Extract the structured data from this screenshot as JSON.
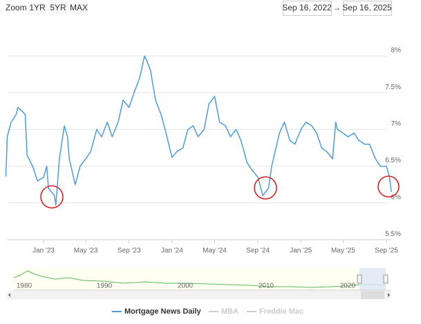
{
  "toolbar": {
    "zoom_label": "Zoom",
    "buttons": [
      "1YR",
      "5YR",
      "MAX"
    ],
    "range_from": "Sep 16, 2022",
    "range_arrow": "→",
    "range_to": "Sep 16, 2025"
  },
  "chart_data": {
    "type": "line",
    "x": [
      "2022-09-16",
      "2022-09-20",
      "2022-10-01",
      "2022-10-15",
      "2022-10-20",
      "2022-11-01",
      "2022-11-10",
      "2022-11-15",
      "2022-12-01",
      "2022-12-15",
      "2023-01-01",
      "2023-01-10",
      "2023-01-15",
      "2023-02-01",
      "2023-02-05",
      "2023-02-15",
      "2023-03-01",
      "2023-03-10",
      "2023-03-15",
      "2023-04-01",
      "2023-04-15",
      "2023-05-01",
      "2023-05-15",
      "2023-06-01",
      "2023-06-15",
      "2023-07-01",
      "2023-07-15",
      "2023-08-01",
      "2023-08-15",
      "2023-09-01",
      "2023-09-15",
      "2023-10-01",
      "2023-10-15",
      "2023-10-20",
      "2023-11-01",
      "2023-11-15",
      "2023-12-01",
      "2023-12-15",
      "2024-01-01",
      "2024-01-15",
      "2024-02-01",
      "2024-02-15",
      "2024-03-01",
      "2024-03-15",
      "2024-04-01",
      "2024-04-15",
      "2024-05-01",
      "2024-05-15",
      "2024-06-01",
      "2024-06-15",
      "2024-07-01",
      "2024-07-15",
      "2024-08-01",
      "2024-08-15",
      "2024-09-01",
      "2024-09-15",
      "2024-10-01",
      "2024-10-10",
      "2024-10-15",
      "2024-11-01",
      "2024-11-15",
      "2024-12-01",
      "2024-12-15",
      "2025-01-01",
      "2025-01-15",
      "2025-02-01",
      "2025-02-15",
      "2025-03-01",
      "2025-03-15",
      "2025-04-01",
      "2025-04-10",
      "2025-04-15",
      "2025-05-01",
      "2025-05-15",
      "2025-06-01",
      "2025-06-15",
      "2025-07-01",
      "2025-07-15",
      "2025-08-01",
      "2025-08-15",
      "2025-09-01",
      "2025-09-10",
      "2025-09-15"
    ],
    "series": [
      {
        "name": "Mortgage News Daily",
        "color": "#4b9be0",
        "values": [
          6.36,
          6.9,
          7.1,
          7.2,
          7.3,
          7.25,
          7.2,
          6.65,
          6.5,
          6.3,
          6.35,
          6.5,
          6.2,
          6.1,
          5.97,
          6.6,
          7.05,
          6.9,
          6.6,
          6.25,
          6.5,
          6.6,
          6.7,
          7.0,
          6.9,
          7.1,
          6.9,
          7.1,
          7.4,
          7.3,
          7.5,
          7.7,
          8.0,
          7.95,
          7.8,
          7.4,
          7.2,
          6.95,
          6.62,
          6.7,
          6.75,
          7.0,
          7.05,
          6.9,
          7.0,
          7.35,
          7.45,
          7.1,
          7.05,
          6.9,
          7.0,
          6.85,
          6.55,
          6.45,
          6.35,
          6.1,
          6.2,
          6.5,
          6.6,
          6.95,
          7.1,
          6.85,
          6.8,
          7.0,
          7.1,
          7.05,
          6.95,
          6.75,
          6.7,
          6.6,
          7.1,
          7.0,
          6.95,
          6.9,
          6.95,
          6.85,
          6.8,
          6.8,
          6.6,
          6.5,
          6.5,
          6.35,
          6.15
        ]
      }
    ],
    "hidden_series": [
      "MBA",
      "Freddie Mac"
    ],
    "xlim": [
      "2022-09-16",
      "2025-09-16"
    ],
    "xticks": [
      {
        "value": "2023-01-01",
        "label": "Jan '23"
      },
      {
        "value": "2023-05-01",
        "label": "May '23"
      },
      {
        "value": "2023-09-01",
        "label": "Sep '23"
      },
      {
        "value": "2024-01-01",
        "label": "Jan '24"
      },
      {
        "value": "2024-05-01",
        "label": "May '24"
      },
      {
        "value": "2024-09-01",
        "label": "Sep '24"
      },
      {
        "value": "2025-01-01",
        "label": "Jan '25"
      },
      {
        "value": "2025-05-01",
        "label": "May '25"
      },
      {
        "value": "2025-09-01",
        "label": "Sep '25"
      }
    ],
    "ylim": [
      5.5,
      8.25
    ],
    "yticks": [
      {
        "value": 5.5,
        "label": "5.5%"
      },
      {
        "value": 6,
        "label": "6%"
      },
      {
        "value": 6.5,
        "label": "6.5%"
      },
      {
        "value": 7,
        "label": "7%"
      },
      {
        "value": 7.5,
        "label": "7.5%"
      },
      {
        "value": 8,
        "label": "8%"
      }
    ],
    "grid": true
  },
  "navigator": {
    "labels": [
      "1980",
      "1990",
      "2000",
      "2010",
      "2020"
    ]
  }
}
